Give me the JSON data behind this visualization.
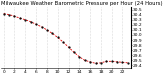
{
  "hours": [
    0,
    1,
    2,
    3,
    4,
    5,
    6,
    7,
    8,
    9,
    10,
    11,
    12,
    13,
    14,
    15,
    16,
    17,
    18,
    19,
    20,
    21,
    22,
    23
  ],
  "pressure": [
    30.42,
    30.4,
    30.37,
    30.33,
    30.3,
    30.26,
    30.21,
    30.16,
    30.1,
    30.03,
    29.95,
    29.86,
    29.76,
    29.66,
    29.57,
    29.5,
    29.47,
    29.44,
    29.45,
    29.48,
    29.48,
    29.47,
    29.46,
    29.45
  ],
  "title": "Milwaukee Weather Barometric Pressure per Hour (24 Hours)",
  "ylim": [
    29.35,
    30.55
  ],
  "ytick_values": [
    29.4,
    29.5,
    29.6,
    29.7,
    29.8,
    29.9,
    30.0,
    30.1,
    30.2,
    30.3,
    30.4,
    30.5
  ],
  "ytick_labels": [
    "29.4",
    "29.5",
    "29.6",
    "29.7",
    "29.8",
    "29.9",
    "30.0",
    "30.1",
    "30.2",
    "30.3",
    "30.4",
    "30.5"
  ],
  "xticks": [
    0,
    2,
    4,
    6,
    8,
    10,
    12,
    14,
    16,
    18,
    20,
    22
  ],
  "line_color": "#dd0000",
  "marker_color": "#000000",
  "bg_color": "#ffffff",
  "grid_color": "#bbbbbb",
  "title_fontsize": 3.8,
  "tick_fontsize": 3.2,
  "line_width": 0.6,
  "marker_size": 1.2
}
